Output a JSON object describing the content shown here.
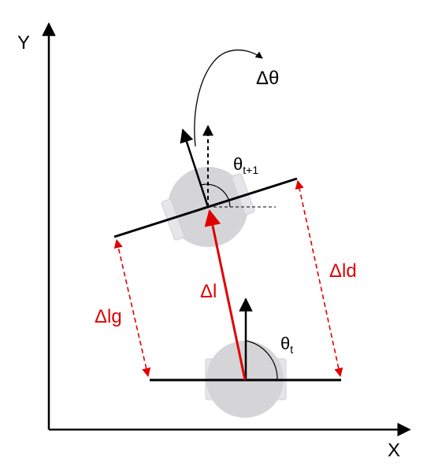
{
  "axes": {
    "x_label": "X",
    "y_label": "Y"
  },
  "labels": {
    "delta_theta": "Δθ",
    "theta_t1_main": "θ",
    "theta_t1_sub": "t+1",
    "theta_t_main": "θ",
    "theta_t_sub": "t",
    "delta_l": "Δl",
    "delta_lg": "Δlg",
    "delta_ld": "Δld"
  },
  "colors": {
    "axis": "#000000",
    "wheelbase": "#000000",
    "displacement": "#e00000",
    "robot_body": "#d5d5d7",
    "wheel": "#e6e6e8"
  }
}
